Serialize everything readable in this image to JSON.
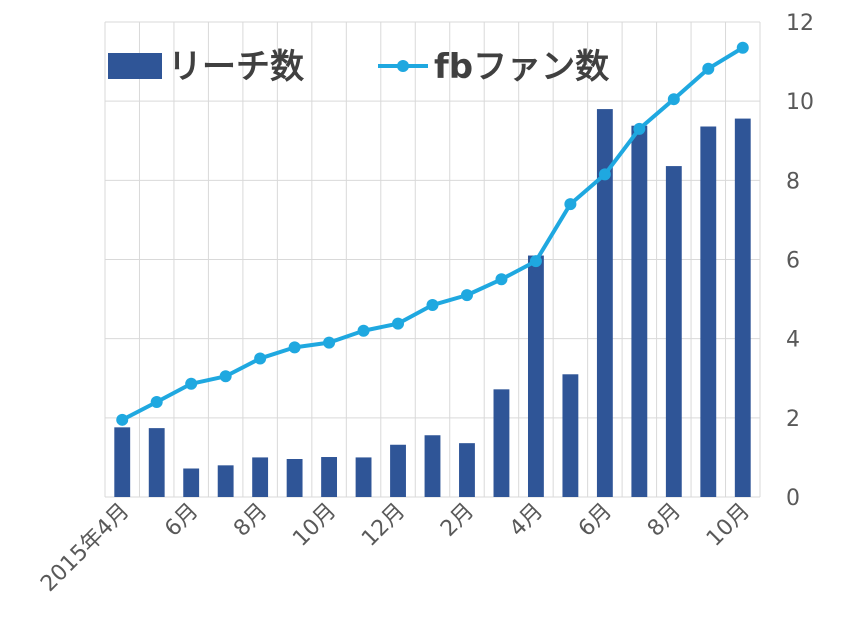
{
  "chart_data": {
    "type": "bar+line",
    "categories": [
      "2015年4月",
      "5月",
      "6月",
      "7月",
      "8月",
      "9月",
      "10月",
      "11月",
      "12月",
      "1月",
      "2月",
      "3月",
      "4月",
      "5月",
      "6月",
      "7月",
      "8月",
      "9月",
      "10月"
    ],
    "x_tick_labels": [
      "2015年4月",
      "6月",
      "8月",
      "10月",
      "12月",
      "2月",
      "4月",
      "6月",
      "8月",
      "10月"
    ],
    "series": [
      {
        "name": "リーチ数",
        "type": "bar",
        "axis": "left",
        "values": [
          1.76,
          1.74,
          0.72,
          0.8,
          1.0,
          0.96,
          1.01,
          1.0,
          1.32,
          1.56,
          1.36,
          2.72,
          6.1,
          3.1,
          9.8,
          9.38,
          8.36,
          9.36,
          9.56
        ],
        "color": "#2f5597"
      },
      {
        "name": "fbファン数",
        "type": "line",
        "axis": "right",
        "values": [
          1.95,
          2.4,
          2.86,
          3.05,
          3.5,
          3.78,
          3.9,
          4.2,
          4.38,
          4.85,
          5.1,
          5.5,
          5.96,
          7.4,
          8.15,
          9.3,
          10.05,
          10.82,
          11.35
        ],
        "color": "#1fa8e0"
      }
    ],
    "y_right": {
      "ticks": [
        0,
        2,
        4,
        6,
        8,
        10,
        12
      ],
      "range": [
        0,
        12
      ]
    },
    "grid": true,
    "legend": "top-left"
  }
}
